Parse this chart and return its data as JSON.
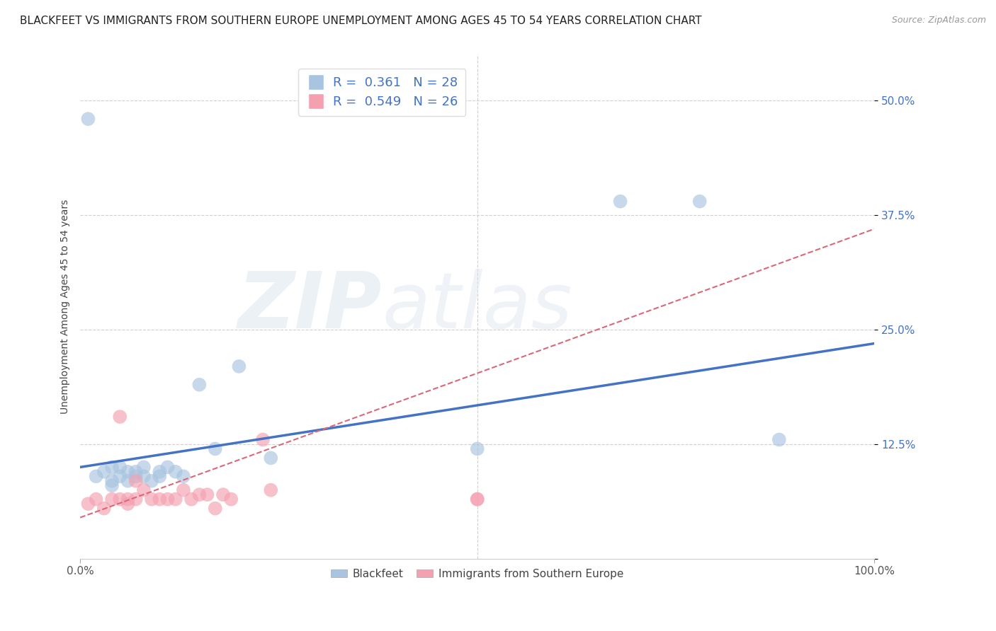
{
  "title": "BLACKFEET VS IMMIGRANTS FROM SOUTHERN EUROPE UNEMPLOYMENT AMONG AGES 45 TO 54 YEARS CORRELATION CHART",
  "source": "Source: ZipAtlas.com",
  "ylabel": "Unemployment Among Ages 45 to 54 years",
  "xlabel": "",
  "xlim": [
    0,
    1.0
  ],
  "ylim": [
    0,
    0.55
  ],
  "xticks": [
    0.0,
    1.0
  ],
  "xticklabels": [
    "0.0%",
    "100.0%"
  ],
  "yticks": [
    0.0,
    0.125,
    0.25,
    0.375,
    0.5
  ],
  "yticklabels": [
    "",
    "12.5%",
    "25.0%",
    "37.5%",
    "50.0%"
  ],
  "blackfeet_x": [
    0.01,
    0.02,
    0.03,
    0.04,
    0.04,
    0.05,
    0.05,
    0.06,
    0.06,
    0.07,
    0.07,
    0.08,
    0.08,
    0.09,
    0.1,
    0.1,
    0.11,
    0.12,
    0.13,
    0.2,
    0.24,
    0.5,
    0.68,
    0.78,
    0.88,
    0.04,
    0.15,
    0.17
  ],
  "blackfeet_y": [
    0.48,
    0.09,
    0.095,
    0.085,
    0.1,
    0.09,
    0.1,
    0.095,
    0.085,
    0.09,
    0.095,
    0.09,
    0.1,
    0.085,
    0.09,
    0.095,
    0.1,
    0.095,
    0.09,
    0.21,
    0.11,
    0.12,
    0.39,
    0.39,
    0.13,
    0.08,
    0.19,
    0.12
  ],
  "southern_europe_x": [
    0.01,
    0.02,
    0.03,
    0.04,
    0.05,
    0.05,
    0.06,
    0.06,
    0.07,
    0.07,
    0.08,
    0.09,
    0.1,
    0.11,
    0.12,
    0.13,
    0.14,
    0.15,
    0.16,
    0.17,
    0.18,
    0.19,
    0.23,
    0.24,
    0.5,
    0.5
  ],
  "southern_europe_y": [
    0.06,
    0.065,
    0.055,
    0.065,
    0.065,
    0.155,
    0.06,
    0.065,
    0.065,
    0.085,
    0.075,
    0.065,
    0.065,
    0.065,
    0.065,
    0.075,
    0.065,
    0.07,
    0.07,
    0.055,
    0.07,
    0.065,
    0.13,
    0.075,
    0.065,
    0.065
  ],
  "blackfeet_color": "#a8c4e0",
  "southern_europe_color": "#f4a0b0",
  "blackfeet_line_color": "#4472c4",
  "southern_europe_line_color": "#d9687a",
  "R_blackfeet": 0.361,
  "N_blackfeet": 28,
  "R_southern_europe": 0.549,
  "N_southern_europe": 26,
  "bf_line_x0": 0.0,
  "bf_line_y0": 0.1,
  "bf_line_x1": 1.0,
  "bf_line_y1": 0.235,
  "se_line_x0": 0.0,
  "se_line_y0": 0.045,
  "se_line_x1": 1.0,
  "se_line_y1": 0.36,
  "watermark_text": "ZIPatlas",
  "background_color": "#ffffff",
  "grid_color": "#d0d0d0",
  "title_fontsize": 11,
  "label_fontsize": 10,
  "tick_fontsize": 11,
  "legend_fontsize": 13
}
